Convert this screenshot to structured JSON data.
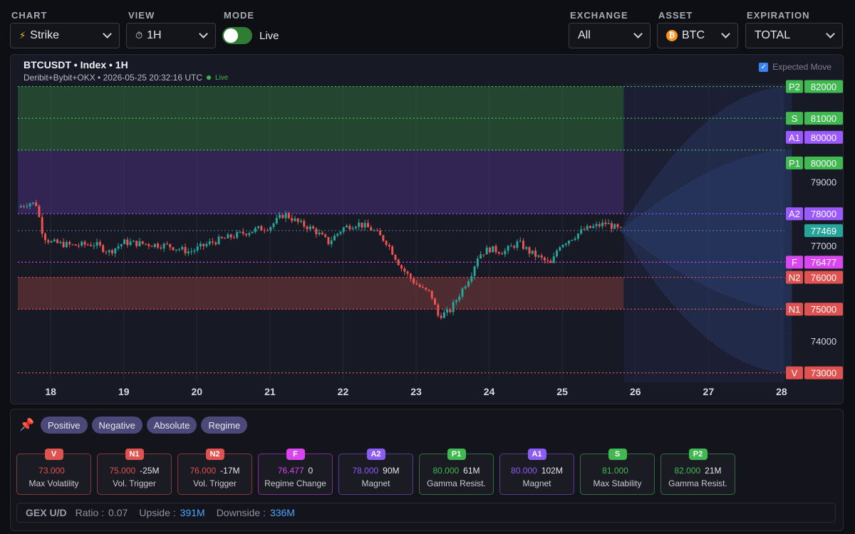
{
  "controls": {
    "chart": {
      "label": "CHART",
      "value": "Strike",
      "icon": "lightning-icon"
    },
    "view": {
      "label": "VIEW",
      "value": "1H",
      "icon": "stopwatch-icon"
    },
    "mode": {
      "label": "MODE",
      "value": "Live",
      "on": true
    },
    "exchange": {
      "label": "EXCHANGE",
      "value": "All"
    },
    "asset": {
      "label": "ASSET",
      "value": "BTC",
      "icon": "bitcoin-icon"
    },
    "expiration": {
      "label": "EXPIRATION",
      "value": "TOTAL"
    }
  },
  "chart_header": {
    "title": "BTCUSDT • Index • 1H",
    "subtitle": "Deribit+Bybit+OKX • 2026-05-25 20:32:16 UTC",
    "live": "Live",
    "expected_move_label": "Expected Move",
    "expected_move_checked": true
  },
  "chart_data": {
    "type": "candlestick",
    "x_ticks": [
      "18",
      "19",
      "20",
      "21",
      "22",
      "23",
      "24",
      "25",
      "26",
      "27",
      "28"
    ],
    "y_ticks": [
      74000,
      77000,
      79000
    ],
    "ylim": [
      72700,
      82100
    ],
    "current_price": 77469,
    "price_path": [
      [
        17.55,
        78200
      ],
      [
        17.7,
        78350
      ],
      [
        17.8,
        78300
      ],
      [
        17.9,
        77300
      ],
      [
        18.0,
        77100
      ],
      [
        18.3,
        77000
      ],
      [
        18.6,
        77050
      ],
      [
        18.8,
        76800
      ],
      [
        19.0,
        77100
      ],
      [
        19.3,
        77050
      ],
      [
        19.6,
        77000
      ],
      [
        19.9,
        76800
      ],
      [
        20.2,
        77100
      ],
      [
        20.5,
        77300
      ],
      [
        20.8,
        77500
      ],
      [
        21.0,
        77600
      ],
      [
        21.2,
        78000
      ],
      [
        21.4,
        77700
      ],
      [
        21.6,
        77500
      ],
      [
        21.8,
        77100
      ],
      [
        22.0,
        77550
      ],
      [
        22.2,
        77700
      ],
      [
        22.4,
        77500
      ],
      [
        22.6,
        77100
      ],
      [
        22.8,
        76300
      ],
      [
        22.95,
        75900
      ],
      [
        23.1,
        75600
      ],
      [
        23.2,
        75500
      ],
      [
        23.3,
        74800
      ],
      [
        23.45,
        74900
      ],
      [
        23.6,
        75500
      ],
      [
        23.75,
        76100
      ],
      [
        23.85,
        76700
      ],
      [
        24.0,
        76900
      ],
      [
        24.2,
        76800
      ],
      [
        24.4,
        77100
      ],
      [
        24.55,
        76800
      ],
      [
        24.7,
        76600
      ],
      [
        24.85,
        76400
      ],
      [
        24.95,
        77000
      ],
      [
        25.1,
        77200
      ],
      [
        25.3,
        77500
      ],
      [
        25.45,
        77600
      ],
      [
        25.6,
        77700
      ],
      [
        25.8,
        77469
      ]
    ],
    "bands": [
      {
        "name": "positive-zone",
        "from": 80000,
        "to": 82000,
        "color": "#2f6b3d"
      },
      {
        "name": "absolute-zone",
        "from": 78000,
        "to": 80000,
        "color": "#4a2f7a"
      },
      {
        "name": "negative-zone",
        "from": 75000,
        "to": 76000,
        "color": "#7a3a3a"
      }
    ],
    "levels": [
      {
        "tag": "P2",
        "value": 82000,
        "color": "#3fb950"
      },
      {
        "tag": "S",
        "value": 81000,
        "color": "#3fb950"
      },
      {
        "tag": "A1",
        "value": 80000,
        "color": "#9b59ff"
      },
      {
        "tag": "P1",
        "value": 80000,
        "color": "#3fb950"
      },
      {
        "tag": "A2",
        "value": 78000,
        "color": "#9b59ff"
      },
      {
        "tag": "F",
        "value": 76477,
        "color": "#d946ef"
      },
      {
        "tag": "N2",
        "value": 76000,
        "color": "#e0524f"
      },
      {
        "tag": "N1",
        "value": 75000,
        "color": "#e0524f"
      },
      {
        "tag": "V",
        "value": 73000,
        "color": "#e0524f"
      }
    ],
    "expected_move": {
      "start_x": 25.8,
      "end_x": 28.2,
      "upper": [
        80000,
        82000
      ],
      "lower": [
        75000,
        73000
      ]
    }
  },
  "filters": {
    "chips": [
      "Positive",
      "Negative",
      "Absolute",
      "Regime"
    ]
  },
  "cards": [
    {
      "tag": "V",
      "value": "73.000",
      "gex": "",
      "desc": "Max Volatility",
      "color": "#e0524f"
    },
    {
      "tag": "N1",
      "value": "75.000",
      "gex": "-25M",
      "desc": "Vol. Trigger",
      "color": "#e0524f"
    },
    {
      "tag": "N2",
      "value": "76.000",
      "gex": "-17M",
      "desc": "Vol. Trigger",
      "color": "#e0524f"
    },
    {
      "tag": "F",
      "value": "76.477",
      "gex": "0",
      "desc": "Regime Change",
      "color": "#d946ef"
    },
    {
      "tag": "A2",
      "value": "78.000",
      "gex": "90M",
      "desc": "Magnet",
      "color": "#8b5cf6"
    },
    {
      "tag": "P1",
      "value": "80.000",
      "gex": "61M",
      "desc": "Gamma Resist.",
      "color": "#3fb950"
    },
    {
      "tag": "A1",
      "value": "80.000",
      "gex": "102M",
      "desc": "Magnet",
      "color": "#8b5cf6"
    },
    {
      "tag": "S",
      "value": "81.000",
      "gex": "",
      "desc": "Max Stability",
      "color": "#3fb950"
    },
    {
      "tag": "P2",
      "value": "82.000",
      "gex": "21M",
      "desc": "Gamma Resist.",
      "color": "#3fb950"
    }
  ],
  "gex_summary": {
    "label": "GEX U/D",
    "ratio_label": "Ratio :",
    "ratio": "0.07",
    "upside_label": "Upside :",
    "upside": "391M",
    "downside_label": "Downside :",
    "downside": "336M"
  },
  "colors": {
    "up_candle": "#26a69a",
    "down_candle": "#ef5350",
    "accent_blue": "#4aa3ff"
  }
}
